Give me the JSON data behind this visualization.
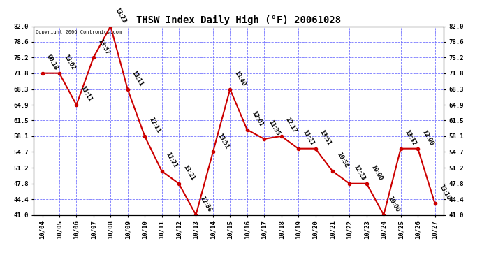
{
  "title": "THSW Index Daily High (°F) 20061028",
  "copyright": "Copyright 2006 Contronics.com",
  "x_labels": [
    "10/04",
    "10/05",
    "10/06",
    "10/07",
    "10/08",
    "10/09",
    "10/10",
    "10/11",
    "10/12",
    "10/13",
    "10/14",
    "10/15",
    "10/16",
    "10/17",
    "10/18",
    "10/19",
    "10/20",
    "10/21",
    "10/22",
    "10/23",
    "10/24",
    "10/25",
    "10/26",
    "10/27"
  ],
  "y_values": [
    71.8,
    71.8,
    64.9,
    75.2,
    82.0,
    68.3,
    58.1,
    50.5,
    47.8,
    41.0,
    54.7,
    68.3,
    59.5,
    57.5,
    58.1,
    55.4,
    55.4,
    50.5,
    47.8,
    47.8,
    41.0,
    55.4,
    55.4,
    43.5
  ],
  "point_labels": [
    "00:18",
    "13:02",
    "11:11",
    "13:57",
    "13:23",
    "13:11",
    "12:11",
    "11:21",
    "13:21",
    "12:36",
    "13:51",
    "13:40",
    "12:01",
    "11:35",
    "12:17",
    "11:21",
    "13:51",
    "10:54",
    "12:23",
    "10:00",
    "10:00",
    "13:32",
    "12:00",
    "13:10"
  ],
  "y_min": 41.0,
  "y_max": 82.0,
  "y_ticks": [
    41.0,
    44.4,
    47.8,
    51.2,
    54.7,
    58.1,
    61.5,
    64.9,
    68.3,
    71.8,
    75.2,
    78.6,
    82.0
  ],
  "line_color": "#cc0000",
  "marker_color": "#cc0000",
  "background_color": "#ffffff",
  "grid_color": "#6666ff",
  "title_color": "#000000",
  "label_color": "#000000",
  "axis_color": "#000000",
  "figwidth": 6.9,
  "figheight": 3.75,
  "dpi": 100
}
